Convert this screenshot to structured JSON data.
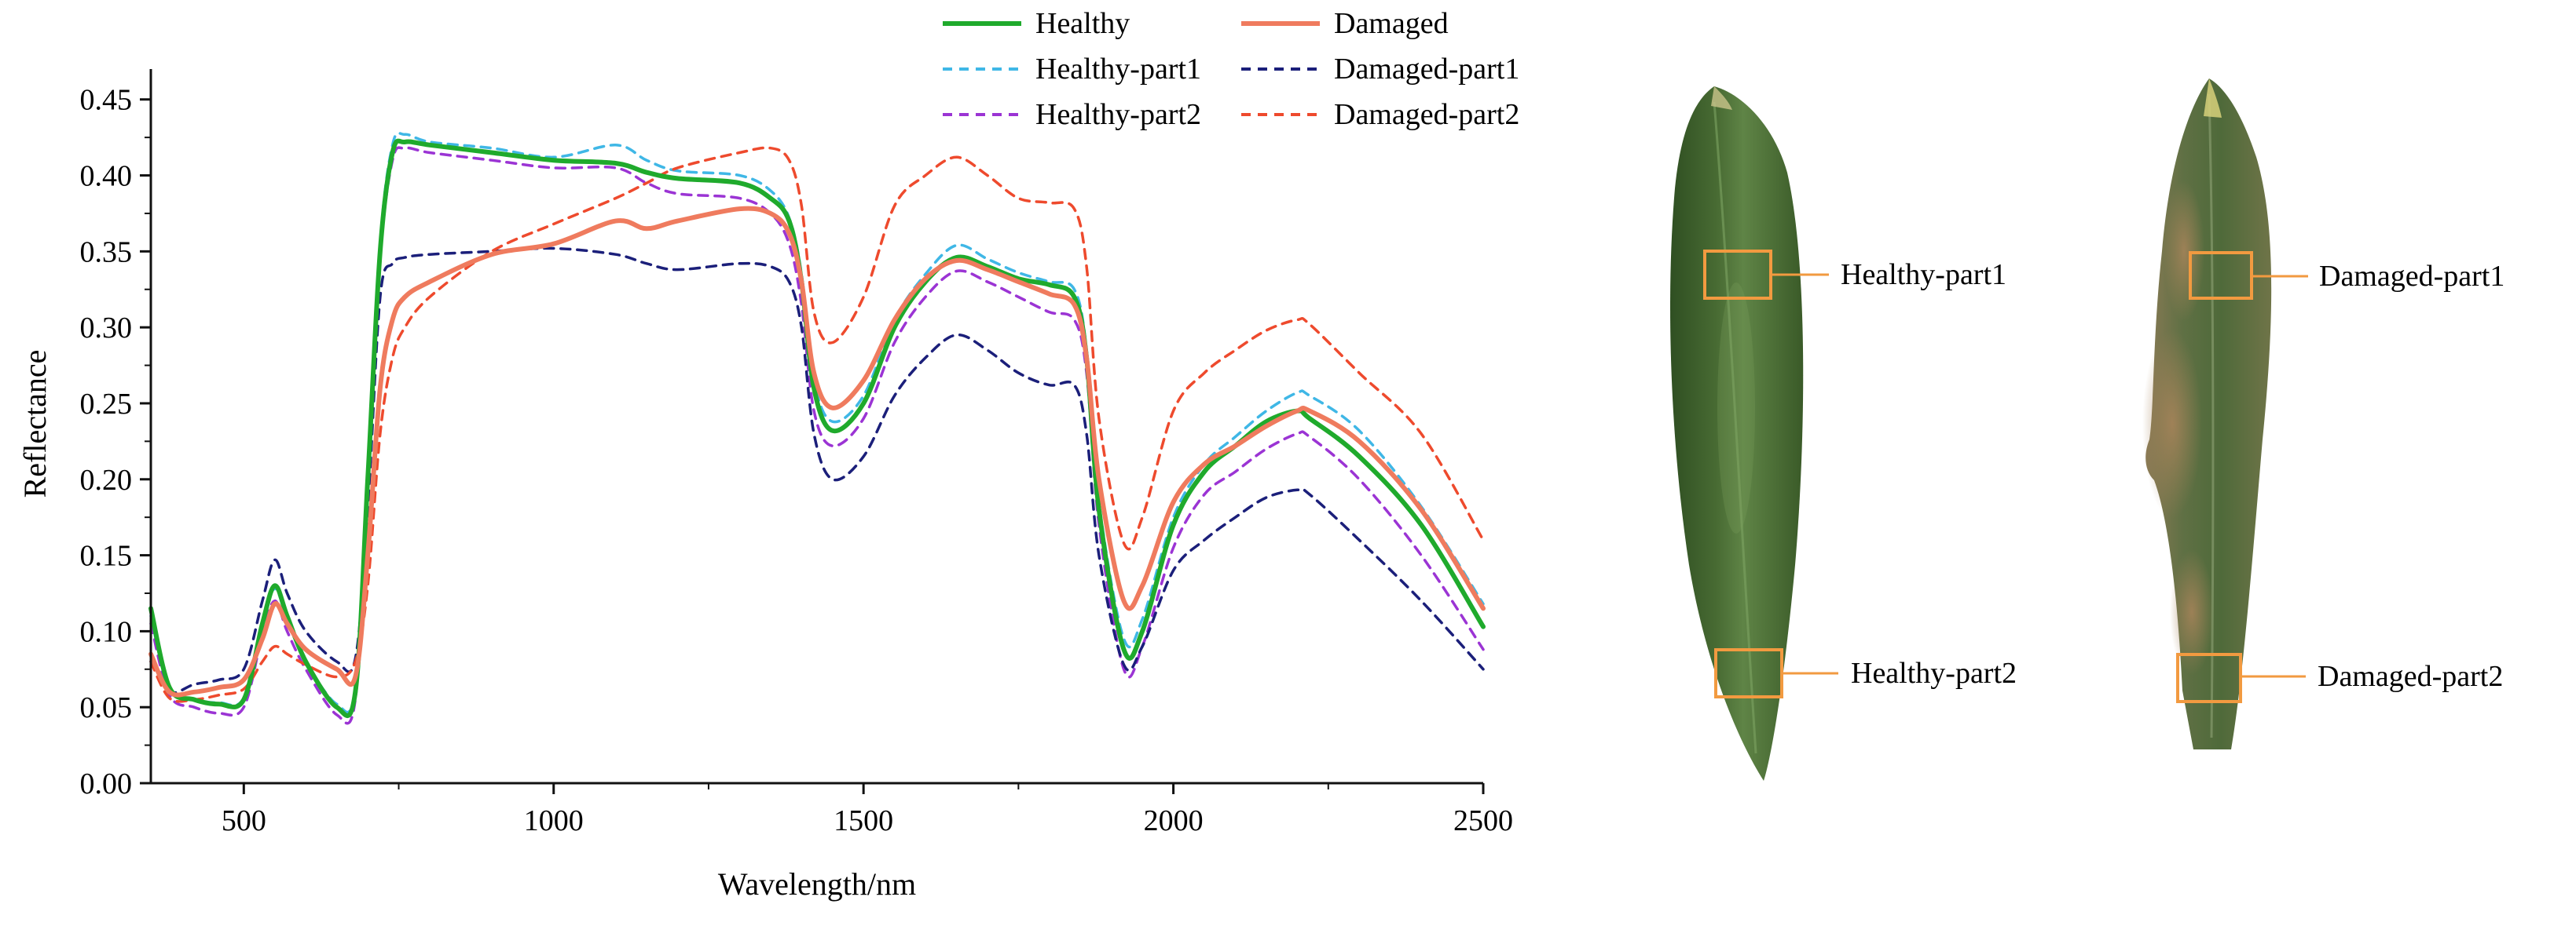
{
  "chart_data": {
    "type": "line",
    "title": "",
    "xlabel": "Wavelength/nm",
    "ylabel": "Reflectance",
    "xlim": [
      350,
      2500
    ],
    "ylim": [
      0,
      0.47
    ],
    "grid": false,
    "legend_position": "top",
    "x_ticks": [
      {
        "value": 500,
        "label": "500"
      },
      {
        "value": 1000,
        "label": "1000"
      },
      {
        "value": 1500,
        "label": "1500"
      },
      {
        "value": 2000,
        "label": "2000"
      },
      {
        "value": 2500,
        "label": "2500"
      }
    ],
    "y_ticks": [
      {
        "value": 0.0,
        "label": "0.00"
      },
      {
        "value": 0.05,
        "label": "0.05"
      },
      {
        "value": 0.1,
        "label": "0.10"
      },
      {
        "value": 0.15,
        "label": "0.15"
      },
      {
        "value": 0.2,
        "label": "0.20"
      },
      {
        "value": 0.25,
        "label": "0.25"
      },
      {
        "value": 0.3,
        "label": "0.30"
      },
      {
        "value": 0.35,
        "label": "0.35"
      },
      {
        "value": 0.4,
        "label": "0.40"
      },
      {
        "value": 0.45,
        "label": "0.45"
      }
    ],
    "x": [
      350,
      380,
      420,
      460,
      500,
      530,
      550,
      570,
      600,
      650,
      680,
      700,
      720,
      740,
      760,
      800,
      900,
      1000,
      1100,
      1150,
      1200,
      1300,
      1350,
      1380,
      1400,
      1420,
      1450,
      1500,
      1550,
      1600,
      1650,
      1700,
      1750,
      1800,
      1840,
      1860,
      1880,
      1920,
      1950,
      2000,
      2050,
      2100,
      2150,
      2200,
      2220,
      2300,
      2400,
      2500
    ],
    "series": [
      {
        "name": "Healthy",
        "color": "#1faa2c",
        "dash": "solid",
        "width": 6,
        "values": [
          0.115,
          0.063,
          0.055,
          0.052,
          0.055,
          0.105,
          0.13,
          0.11,
          0.08,
          0.05,
          0.06,
          0.2,
          0.35,
          0.415,
          0.422,
          0.42,
          0.415,
          0.41,
          0.408,
          0.402,
          0.398,
          0.395,
          0.385,
          0.37,
          0.33,
          0.26,
          0.232,
          0.25,
          0.3,
          0.33,
          0.346,
          0.34,
          0.332,
          0.328,
          0.32,
          0.28,
          0.18,
          0.088,
          0.1,
          0.17,
          0.205,
          0.222,
          0.238,
          0.245,
          0.24,
          0.215,
          0.17,
          0.103
        ]
      },
      {
        "name": "Damaged",
        "color": "#ef7b5e",
        "dash": "solid",
        "width": 6,
        "values": [
          0.085,
          0.06,
          0.06,
          0.063,
          0.068,
          0.095,
          0.118,
          0.105,
          0.088,
          0.075,
          0.07,
          0.15,
          0.26,
          0.305,
          0.32,
          0.33,
          0.348,
          0.355,
          0.37,
          0.365,
          0.37,
          0.378,
          0.375,
          0.362,
          0.33,
          0.27,
          0.247,
          0.265,
          0.305,
          0.332,
          0.344,
          0.338,
          0.33,
          0.322,
          0.315,
          0.28,
          0.2,
          0.12,
          0.13,
          0.185,
          0.21,
          0.222,
          0.235,
          0.245,
          0.245,
          0.225,
          0.18,
          0.115
        ]
      },
      {
        "name": "Healthy-part1",
        "color": "#3fb7e6",
        "dash": "dash",
        "width": 3.5,
        "values": [
          0.11,
          0.062,
          0.055,
          0.053,
          0.056,
          0.105,
          0.128,
          0.108,
          0.08,
          0.052,
          0.062,
          0.2,
          0.355,
          0.42,
          0.427,
          0.422,
          0.418,
          0.412,
          0.42,
          0.41,
          0.403,
          0.4,
          0.39,
          0.372,
          0.335,
          0.265,
          0.238,
          0.255,
          0.305,
          0.335,
          0.354,
          0.345,
          0.336,
          0.33,
          0.325,
          0.285,
          0.185,
          0.095,
          0.108,
          0.175,
          0.21,
          0.228,
          0.245,
          0.257,
          0.255,
          0.232,
          0.182,
          0.118
        ]
      },
      {
        "name": "Healthy-part2",
        "color": "#9b34d4",
        "dash": "dash",
        "width": 3.5,
        "values": [
          0.105,
          0.058,
          0.05,
          0.046,
          0.05,
          0.098,
          0.12,
          0.1,
          0.075,
          0.045,
          0.055,
          0.195,
          0.345,
          0.41,
          0.418,
          0.415,
          0.41,
          0.405,
          0.405,
          0.395,
          0.388,
          0.385,
          0.375,
          0.355,
          0.315,
          0.245,
          0.222,
          0.24,
          0.29,
          0.32,
          0.337,
          0.33,
          0.32,
          0.31,
          0.305,
          0.27,
          0.17,
          0.075,
          0.09,
          0.155,
          0.19,
          0.205,
          0.22,
          0.23,
          0.228,
          0.2,
          0.15,
          0.088
        ]
      },
      {
        "name": "Damaged-part1",
        "color": "#1b1f7a",
        "dash": "dash",
        "width": 3.5,
        "values": [
          0.08,
          0.06,
          0.065,
          0.068,
          0.075,
          0.12,
          0.147,
          0.125,
          0.1,
          0.08,
          0.082,
          0.18,
          0.32,
          0.342,
          0.346,
          0.348,
          0.35,
          0.352,
          0.348,
          0.342,
          0.338,
          0.342,
          0.34,
          0.33,
          0.3,
          0.23,
          0.2,
          0.215,
          0.255,
          0.28,
          0.295,
          0.285,
          0.27,
          0.262,
          0.262,
          0.23,
          0.15,
          0.078,
          0.09,
          0.14,
          0.16,
          0.175,
          0.188,
          0.193,
          0.19,
          0.16,
          0.12,
          0.075
        ]
      },
      {
        "name": "Damaged-part2",
        "color": "#ee4a2d",
        "dash": "dash",
        "width": 3.5,
        "values": [
          0.08,
          0.056,
          0.055,
          0.058,
          0.062,
          0.08,
          0.09,
          0.085,
          0.078,
          0.07,
          0.08,
          0.13,
          0.23,
          0.28,
          0.3,
          0.32,
          0.35,
          0.368,
          0.385,
          0.395,
          0.405,
          0.415,
          0.418,
          0.41,
          0.38,
          0.31,
          0.29,
          0.32,
          0.38,
          0.4,
          0.412,
          0.4,
          0.385,
          0.382,
          0.378,
          0.34,
          0.24,
          0.158,
          0.175,
          0.245,
          0.27,
          0.285,
          0.298,
          0.305,
          0.302,
          0.27,
          0.23,
          0.16
        ]
      }
    ]
  },
  "panels": {
    "healthy_leaf": {
      "annotations": [
        {
          "label": "Healthy-part1",
          "box_color": "#f29a40"
        },
        {
          "label": "Healthy-part2",
          "box_color": "#f29a40"
        }
      ]
    },
    "damaged_leaf": {
      "annotations": [
        {
          "label": "Damaged-part1",
          "box_color": "#f29a40"
        },
        {
          "label": "Damaged-part2",
          "box_color": "#f29a40"
        }
      ]
    }
  }
}
